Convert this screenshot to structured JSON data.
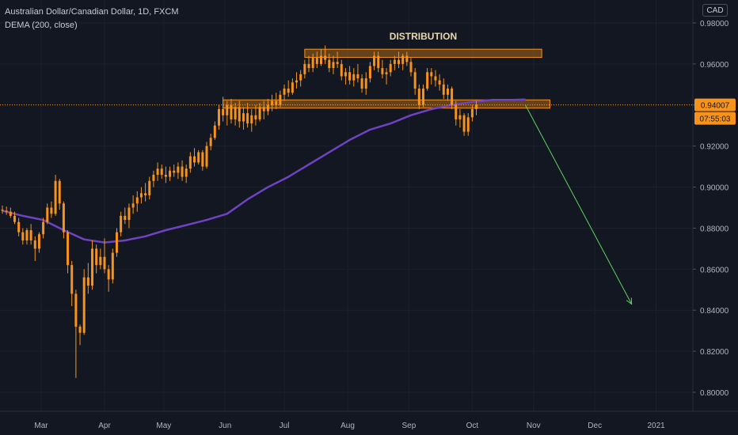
{
  "header": {
    "title": "Australian Dollar/Canadian Dollar, 1D, FXCM",
    "indicator": "DEMA (200, close)",
    "currency": "CAD"
  },
  "colors": {
    "background": "#131722",
    "candle": "#f7931a",
    "dema": "#6f42c1",
    "zone_fill": "#f7931a",
    "arrow": "#5fd35f",
    "axis_text": "#b2b5be",
    "price_label_bg": "#f7931a",
    "grid": "#1c202b"
  },
  "chart_data": {
    "type": "candlestick",
    "symbol": "AUDCAD",
    "timeframe": "1D",
    "ylim": [
      0.795,
      0.985
    ],
    "y_ticks": [
      "0.98000",
      "0.96000",
      "0.94000",
      "0.92000",
      "0.90000",
      "0.88000",
      "0.86000",
      "0.84000",
      "0.82000",
      "0.80000"
    ],
    "y_tick_values": [
      0.98,
      0.96,
      0.94,
      0.92,
      0.9,
      0.88,
      0.86,
      0.84,
      0.82,
      0.8
    ],
    "x_ticks": [
      "Mar",
      "Apr",
      "May",
      "Jun",
      "Jul",
      "Aug",
      "Sep",
      "Oct",
      "Nov",
      "Dec",
      "2021"
    ],
    "x_tick_days": [
      19,
      50,
      79,
      109,
      138,
      169,
      199,
      230,
      260,
      290,
      320
    ],
    "x_range_days": [
      0,
      345
    ],
    "last_price": {
      "value": 0.94007,
      "label": "0.94007",
      "countdown": "07:55:03"
    },
    "annotations": {
      "title": "DISTRIBUTION",
      "zones": [
        {
          "name": "distribution-top-zone",
          "x0": 148,
          "x1": 264,
          "y0": 0.9632,
          "y1": 0.9672
        },
        {
          "name": "support-zone",
          "x0": 108,
          "x1": 268,
          "y0": 0.9385,
          "y1": 0.9425
        }
      ],
      "arrow": {
        "x0": 256,
        "y0": 0.94,
        "x1": 308,
        "y1": 0.843
      }
    },
    "dema": [
      [
        0,
        0.8885
      ],
      [
        10,
        0.886
      ],
      [
        20,
        0.884
      ],
      [
        30,
        0.879
      ],
      [
        40,
        0.8745
      ],
      [
        50,
        0.873
      ],
      [
        60,
        0.874
      ],
      [
        70,
        0.876
      ],
      [
        80,
        0.879
      ],
      [
        90,
        0.8815
      ],
      [
        100,
        0.884
      ],
      [
        110,
        0.887
      ],
      [
        120,
        0.894
      ],
      [
        130,
        0.9
      ],
      [
        140,
        0.905
      ],
      [
        150,
        0.911
      ],
      [
        160,
        0.917
      ],
      [
        170,
        0.923
      ],
      [
        180,
        0.928
      ],
      [
        190,
        0.931
      ],
      [
        200,
        0.935
      ],
      [
        210,
        0.938
      ],
      [
        220,
        0.94
      ],
      [
        230,
        0.9415
      ],
      [
        240,
        0.9425
      ],
      [
        250,
        0.9425
      ],
      [
        256,
        0.9427
      ]
    ],
    "candles": [
      [
        0,
        0.889,
        0.891,
        0.887,
        0.8885
      ],
      [
        2,
        0.8885,
        0.8905,
        0.8865,
        0.888
      ],
      [
        4,
        0.888,
        0.89,
        0.885,
        0.886
      ],
      [
        6,
        0.886,
        0.888,
        0.882,
        0.883
      ],
      [
        8,
        0.883,
        0.885,
        0.876,
        0.878
      ],
      [
        10,
        0.878,
        0.88,
        0.872,
        0.874
      ],
      [
        12,
        0.874,
        0.88,
        0.872,
        0.879
      ],
      [
        14,
        0.879,
        0.882,
        0.872,
        0.874
      ],
      [
        16,
        0.874,
        0.876,
        0.864,
        0.87
      ],
      [
        18,
        0.87,
        0.878,
        0.868,
        0.877
      ],
      [
        20,
        0.877,
        0.885,
        0.875,
        0.883
      ],
      [
        22,
        0.883,
        0.892,
        0.882,
        0.89
      ],
      [
        24,
        0.89,
        0.893,
        0.885,
        0.887
      ],
      [
        26,
        0.887,
        0.906,
        0.886,
        0.903
      ],
      [
        28,
        0.903,
        0.904,
        0.889,
        0.892
      ],
      [
        30,
        0.892,
        0.893,
        0.875,
        0.878
      ],
      [
        32,
        0.878,
        0.879,
        0.858,
        0.862
      ],
      [
        34,
        0.862,
        0.864,
        0.842,
        0.848
      ],
      [
        36,
        0.848,
        0.85,
        0.807,
        0.832
      ],
      [
        38,
        0.832,
        0.833,
        0.823,
        0.829
      ],
      [
        40,
        0.829,
        0.86,
        0.828,
        0.856
      ],
      [
        42,
        0.856,
        0.863,
        0.848,
        0.852
      ],
      [
        44,
        0.852,
        0.874,
        0.85,
        0.87
      ],
      [
        46,
        0.87,
        0.872,
        0.858,
        0.862
      ],
      [
        48,
        0.862,
        0.87,
        0.86,
        0.866
      ],
      [
        50,
        0.866,
        0.875,
        0.858,
        0.86
      ],
      [
        52,
        0.86,
        0.862,
        0.849,
        0.855
      ],
      [
        54,
        0.855,
        0.87,
        0.853,
        0.868
      ],
      [
        56,
        0.868,
        0.88,
        0.866,
        0.878
      ],
      [
        58,
        0.878,
        0.888,
        0.876,
        0.886
      ],
      [
        60,
        0.886,
        0.89,
        0.882,
        0.884
      ],
      [
        62,
        0.884,
        0.892,
        0.88,
        0.89
      ],
      [
        64,
        0.89,
        0.896,
        0.887,
        0.892
      ],
      [
        66,
        0.892,
        0.898,
        0.888,
        0.895
      ],
      [
        68,
        0.895,
        0.9,
        0.892,
        0.897
      ],
      [
        70,
        0.897,
        0.902,
        0.893,
        0.896
      ],
      [
        72,
        0.896,
        0.905,
        0.894,
        0.903
      ],
      [
        74,
        0.903,
        0.908,
        0.9,
        0.906
      ],
      [
        76,
        0.906,
        0.912,
        0.903,
        0.909
      ],
      [
        78,
        0.909,
        0.911,
        0.904,
        0.906
      ],
      [
        80,
        0.906,
        0.91,
        0.902,
        0.905
      ],
      [
        82,
        0.905,
        0.91,
        0.903,
        0.908
      ],
      [
        84,
        0.908,
        0.911,
        0.905,
        0.907
      ],
      [
        86,
        0.907,
        0.912,
        0.904,
        0.91
      ],
      [
        88,
        0.91,
        0.913,
        0.903,
        0.905
      ],
      [
        90,
        0.905,
        0.911,
        0.902,
        0.909
      ],
      [
        92,
        0.909,
        0.917,
        0.907,
        0.915
      ],
      [
        94,
        0.915,
        0.919,
        0.91,
        0.912
      ],
      [
        96,
        0.912,
        0.918,
        0.911,
        0.917
      ],
      [
        98,
        0.917,
        0.918,
        0.908,
        0.91
      ],
      [
        100,
        0.91,
        0.922,
        0.909,
        0.92
      ],
      [
        102,
        0.92,
        0.926,
        0.918,
        0.924
      ],
      [
        104,
        0.924,
        0.932,
        0.923,
        0.93
      ],
      [
        106,
        0.93,
        0.94,
        0.928,
        0.938
      ],
      [
        108,
        0.938,
        0.944,
        0.932,
        0.935
      ],
      [
        110,
        0.935,
        0.942,
        0.93,
        0.94
      ],
      [
        112,
        0.94,
        0.943,
        0.931,
        0.933
      ],
      [
        114,
        0.933,
        0.941,
        0.93,
        0.939
      ],
      [
        116,
        0.939,
        0.942,
        0.929,
        0.932
      ],
      [
        118,
        0.932,
        0.939,
        0.928,
        0.936
      ],
      [
        120,
        0.936,
        0.941,
        0.929,
        0.931
      ],
      [
        122,
        0.931,
        0.938,
        0.927,
        0.935
      ],
      [
        124,
        0.935,
        0.94,
        0.93,
        0.933
      ],
      [
        126,
        0.933,
        0.941,
        0.932,
        0.939
      ],
      [
        128,
        0.939,
        0.942,
        0.933,
        0.937
      ],
      [
        130,
        0.937,
        0.943,
        0.935,
        0.94
      ],
      [
        132,
        0.94,
        0.945,
        0.937,
        0.942
      ],
      [
        134,
        0.942,
        0.946,
        0.938,
        0.94
      ],
      [
        136,
        0.94,
        0.947,
        0.939,
        0.945
      ],
      [
        138,
        0.945,
        0.95,
        0.942,
        0.948
      ],
      [
        140,
        0.948,
        0.952,
        0.944,
        0.946
      ],
      [
        142,
        0.946,
        0.953,
        0.945,
        0.951
      ],
      [
        144,
        0.951,
        0.956,
        0.948,
        0.952
      ],
      [
        146,
        0.952,
        0.957,
        0.949,
        0.955
      ],
      [
        148,
        0.955,
        0.962,
        0.953,
        0.96
      ],
      [
        150,
        0.96,
        0.964,
        0.956,
        0.958
      ],
      [
        152,
        0.958,
        0.965,
        0.956,
        0.963
      ],
      [
        154,
        0.963,
        0.966,
        0.958,
        0.96
      ],
      [
        156,
        0.96,
        0.967,
        0.959,
        0.964
      ],
      [
        158,
        0.964,
        0.969,
        0.96,
        0.962
      ],
      [
        160,
        0.962,
        0.965,
        0.956,
        0.958
      ],
      [
        162,
        0.958,
        0.964,
        0.955,
        0.961
      ],
      [
        164,
        0.961,
        0.966,
        0.958,
        0.96
      ],
      [
        166,
        0.96,
        0.962,
        0.952,
        0.954
      ],
      [
        168,
        0.954,
        0.958,
        0.95,
        0.956
      ],
      [
        170,
        0.956,
        0.959,
        0.95,
        0.952
      ],
      [
        172,
        0.952,
        0.958,
        0.949,
        0.955
      ],
      [
        174,
        0.955,
        0.96,
        0.951,
        0.953
      ],
      [
        176,
        0.953,
        0.955,
        0.946,
        0.948
      ],
      [
        178,
        0.948,
        0.956,
        0.945,
        0.953
      ],
      [
        180,
        0.953,
        0.961,
        0.951,
        0.959
      ],
      [
        182,
        0.959,
        0.966,
        0.957,
        0.964
      ],
      [
        184,
        0.964,
        0.966,
        0.956,
        0.958
      ],
      [
        186,
        0.958,
        0.962,
        0.953,
        0.955
      ],
      [
        188,
        0.955,
        0.958,
        0.95,
        0.956
      ],
      [
        190,
        0.956,
        0.962,
        0.954,
        0.96
      ],
      [
        192,
        0.96,
        0.964,
        0.957,
        0.962
      ],
      [
        194,
        0.962,
        0.966,
        0.958,
        0.96
      ],
      [
        196,
        0.96,
        0.965,
        0.957,
        0.964
      ],
      [
        198,
        0.964,
        0.966,
        0.959,
        0.961
      ],
      [
        200,
        0.961,
        0.963,
        0.954,
        0.956
      ],
      [
        202,
        0.956,
        0.958,
        0.945,
        0.948
      ],
      [
        204,
        0.948,
        0.95,
        0.938,
        0.94
      ],
      [
        206,
        0.94,
        0.95,
        0.939,
        0.948
      ],
      [
        208,
        0.948,
        0.958,
        0.947,
        0.956
      ],
      [
        210,
        0.956,
        0.958,
        0.95,
        0.954
      ],
      [
        212,
        0.954,
        0.957,
        0.949,
        0.952
      ],
      [
        214,
        0.952,
        0.955,
        0.947,
        0.95
      ],
      [
        216,
        0.95,
        0.953,
        0.943,
        0.945
      ],
      [
        218,
        0.945,
        0.95,
        0.942,
        0.948
      ],
      [
        220,
        0.948,
        0.949,
        0.938,
        0.94
      ],
      [
        222,
        0.94,
        0.942,
        0.93,
        0.933
      ],
      [
        224,
        0.933,
        0.938,
        0.929,
        0.935
      ],
      [
        226,
        0.935,
        0.936,
        0.925,
        0.927
      ],
      [
        228,
        0.927,
        0.936,
        0.925,
        0.934
      ],
      [
        230,
        0.934,
        0.94,
        0.932,
        0.938
      ],
      [
        232,
        0.938,
        0.942,
        0.935,
        0.9401
      ]
    ]
  }
}
